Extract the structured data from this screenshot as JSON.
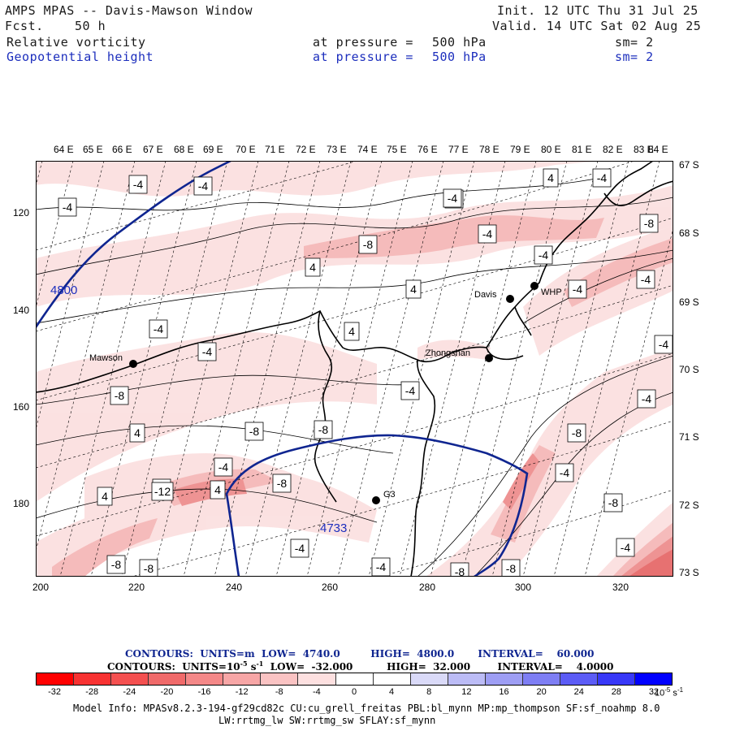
{
  "header": {
    "title": "AMPS MPAS -- Davis-Mawson Window",
    "fcst_label": "Fcst.",
    "fcst_value": "50 h",
    "init": "Init. 12 UTC Thu 31 Jul 25",
    "valid": "Valid. 14 UTC Sat 02 Aug 25",
    "field1": {
      "name": "Relative vorticity",
      "level": "at pressure =",
      "value": "500 hPa",
      "sm": "sm= 2"
    },
    "field2": {
      "name": "Geopotential height",
      "level": "at pressure =",
      "value": "500 hPa",
      "sm": "sm= 2"
    }
  },
  "map": {
    "lon_labels": [
      "64 E",
      "65 E",
      "66 E",
      "67 E",
      "68 E",
      "69 E",
      "70 E",
      "71 E",
      "72 E",
      "73 E",
      "74 E",
      "75 E",
      "76 E",
      "77 E",
      "78 E",
      "79 E",
      "80 E",
      "81 E",
      "82 E",
      "83 E",
      "84 E"
    ],
    "lat_labels": [
      "67 S",
      "68 S",
      "69 S",
      "70 S",
      "71 S",
      "72 S",
      "73 S"
    ],
    "x_ticks": [
      "200",
      "220",
      "240",
      "260",
      "280",
      "300",
      "320"
    ],
    "y_ticks": [
      "120",
      "140",
      "160",
      "180"
    ],
    "stations": [
      {
        "name": "Mawson"
      },
      {
        "name": "Davis"
      },
      {
        "name": "WHP"
      },
      {
        "name": "Zhongshan"
      },
      {
        "name": "G3"
      }
    ],
    "height_labels": [
      "4800",
      "4733"
    ],
    "vort_labels": [
      "-4",
      "-4",
      "-4",
      "4",
      "-4",
      "4",
      "-4",
      "-4",
      "-4",
      "-4",
      "4",
      "-4",
      "-4",
      "-4",
      "-4",
      "-8",
      "-8",
      "-8",
      "-8",
      "-8",
      "-8",
      "-8",
      "-8",
      "-8",
      "-8",
      "-8",
      "-12",
      "4",
      "4",
      "4",
      "4",
      "-4",
      "-4",
      "-4",
      "-4",
      "-4",
      "-4",
      "-4",
      "-8",
      "-8",
      "-4"
    ],
    "colors": {
      "height_contour": "#0f2590",
      "coast": "#000000",
      "pink_light": "#fbe0e0",
      "pink_mid": "#f5b8b8",
      "pink_dark": "#ee8e8e",
      "pink_strong": "#e66a6a"
    }
  },
  "contour_info": {
    "line1": "CONTOURS:  UNITS=m  LOW=  4740.0         HIGH=  4800.0       INTERVAL=    60.000",
    "line2_pre": "CONTOURS:  UNITS=10",
    "line2_sup": "-5",
    "line2_post": " s",
    "line2_sup2": "-1",
    "line2_rest": "  LOW=  -32.000          HIGH=  32.000        INTERVAL=    4.0000"
  },
  "colorbar": {
    "labels": [
      "-32",
      "-28",
      "-24",
      "-20",
      "-16",
      "-12",
      "-8",
      "-4",
      "0",
      "4",
      "8",
      "12",
      "16",
      "20",
      "24",
      "28",
      "32"
    ],
    "unit_base": "10",
    "unit_exp": "-5",
    "unit_s": " s",
    "unit_s_exp": "-1",
    "colors": [
      "#ff0000",
      "#f83232",
      "#f45050",
      "#f06a6a",
      "#f48888",
      "#f7a6a6",
      "#fac3c3",
      "#fde0e0",
      "#ffffff",
      "#ffffff",
      "#dadaf8",
      "#bcbcf6",
      "#9e9ef4",
      "#7e7ef4",
      "#5c5cf6",
      "#3838f8",
      "#0000ff"
    ]
  },
  "model_info": {
    "line1": "Model Info: MPASv8.2.3-194-gf29cd82c CU:cu_grell_freitas PBL:bl_mynn MP:mp_thompson SF:sf_noahmp 8.0",
    "line2": "LW:rrtmg_lw SW:rrtmg_sw SFLAY:sf_mynn"
  }
}
